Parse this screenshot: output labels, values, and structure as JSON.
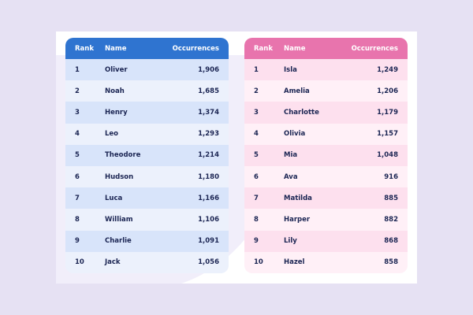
{
  "headers": {
    "rank": "Rank",
    "name": "Name",
    "occurrences": "Occurrences"
  },
  "colors": {
    "boys_header": "#2f74d0",
    "girls_header": "#e874ad",
    "text": "#1b2553"
  },
  "boys": [
    {
      "rank": "1",
      "name": "Oliver",
      "occurrences": "1,906"
    },
    {
      "rank": "2",
      "name": "Noah",
      "occurrences": "1,685"
    },
    {
      "rank": "3",
      "name": "Henry",
      "occurrences": "1,374"
    },
    {
      "rank": "4",
      "name": "Leo",
      "occurrences": "1,293"
    },
    {
      "rank": "5",
      "name": "Theodore",
      "occurrences": "1,214"
    },
    {
      "rank": "6",
      "name": "Hudson",
      "occurrences": "1,180"
    },
    {
      "rank": "7",
      "name": "Luca",
      "occurrences": "1,166"
    },
    {
      "rank": "8",
      "name": "William",
      "occurrences": "1,106"
    },
    {
      "rank": "9",
      "name": "Charlie",
      "occurrences": "1,091"
    },
    {
      "rank": "10",
      "name": "Jack",
      "occurrences": "1,056"
    }
  ],
  "girls": [
    {
      "rank": "1",
      "name": "Isla",
      "occurrences": "1,249"
    },
    {
      "rank": "2",
      "name": "Amelia",
      "occurrences": "1,206"
    },
    {
      "rank": "3",
      "name": "Charlotte",
      "occurrences": "1,179"
    },
    {
      "rank": "4",
      "name": "Olivia",
      "occurrences": "1,157"
    },
    {
      "rank": "5",
      "name": "Mia",
      "occurrences": "1,048"
    },
    {
      "rank": "6",
      "name": "Ava",
      "occurrences": "916"
    },
    {
      "rank": "7",
      "name": "Matilda",
      "occurrences": "885"
    },
    {
      "rank": "8",
      "name": "Harper",
      "occurrences": "882"
    },
    {
      "rank": "9",
      "name": "Lily",
      "occurrences": "868"
    },
    {
      "rank": "10",
      "name": "Hazel",
      "occurrences": "858"
    }
  ]
}
